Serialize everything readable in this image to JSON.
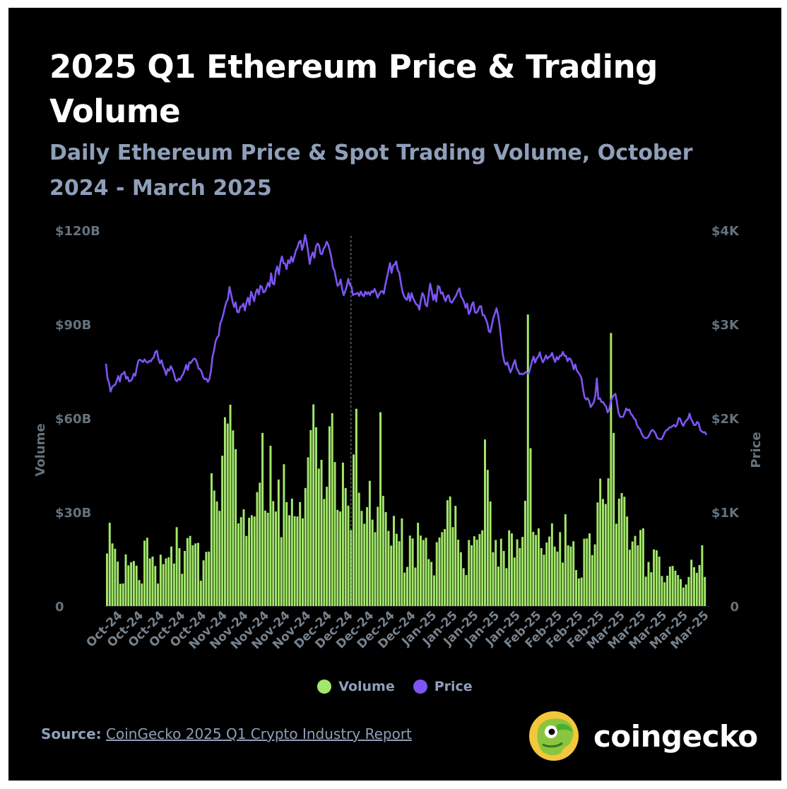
{
  "header": {
    "title": "2025 Q1 Ethereum Price & Trading Volume",
    "subtitle": "Daily Ethereum Price & Spot Trading Volume, October 2024 - March 2025"
  },
  "colors": {
    "background": "#000000",
    "volume": "#a3e86a",
    "price": "#7d55f4",
    "subtitle": "#8f9fb9",
    "axis_text": "#64727d"
  },
  "legend": {
    "volume_label": "Volume",
    "price_label": "Price"
  },
  "footer": {
    "source_label": "Source:",
    "source_text": "CoinGecko 2025 Q1 Crypto Industry Report",
    "brand": "coingecko"
  },
  "icons": {
    "logo": "coingecko-gecko-logo-icon"
  },
  "chart_data": {
    "type": "bar",
    "title": "2025 Q1 Ethereum Price & Trading Volume",
    "subtitle": "Daily Ethereum Price & Spot Trading Volume, October 2024 - March 2025",
    "y_left": {
      "label": "Volume",
      "range": [
        0,
        120
      ],
      "unit": "B USD",
      "ticks": [
        "0",
        "$30B",
        "$60B",
        "$90B",
        "$120B"
      ]
    },
    "y_right": {
      "label": "Price",
      "range": [
        0,
        4000
      ],
      "unit": "USD",
      "ticks": [
        "0",
        "$1K",
        "$2K",
        "$3K",
        "$4K"
      ]
    },
    "x_tick_labels": [
      "Oct-24",
      "Oct-24",
      "Oct-24",
      "Oct-24",
      "Oct-24",
      "Nov-24",
      "Nov-24",
      "Nov-24",
      "Nov-24",
      "Nov-24",
      "Dec-24",
      "Dec-24",
      "Dec-24",
      "Dec-24",
      "Dec-24",
      "Jan-25",
      "Jan-25",
      "Jan-25",
      "Jan-25",
      "Jan-25",
      "Feb-25",
      "Feb-25",
      "Feb-25",
      "Feb-25",
      "Mar-25",
      "Mar-25",
      "Mar-25",
      "Mar-25",
      "Mar-25"
    ],
    "vline_index": 91,
    "grid": false,
    "legend_position": "bottom",
    "series": [
      {
        "name": "Volume",
        "kind": "bar",
        "axis": "left",
        "values": [
          16.8,
          26.6,
          20,
          18.3,
          14.2,
          7.1,
          7.2,
          16.5,
          13,
          14,
          14.4,
          12.9,
          8.3,
          7.2,
          20.9,
          21.8,
          15.2,
          15.8,
          12.8,
          7.2,
          16.4,
          13.4,
          15.2,
          15.6,
          19,
          13.6,
          25.2,
          18.5,
          10.3,
          17.6,
          21.7,
          22.4,
          19.4,
          20,
          20.2,
          8.1,
          14.6,
          17.3,
          17.4,
          42.4,
          36.9,
          33.4,
          30.4,
          48,
          60.3,
          58.3,
          64.3,
          56.1,
          50.1,
          26.4,
          28.4,
          30.9,
          22.4,
          28.2,
          29,
          28.6,
          36.4,
          39.4,
          55.3,
          30.5,
          29.8,
          51.2,
          33.5,
          30.2,
          40.4,
          22,
          45.3,
          33.2,
          29,
          34.3,
          28.7,
          28.6,
          33.2,
          28,
          37.7,
          47.5,
          56.2,
          64.4,
          57.1,
          43.9,
          46.7,
          34.2,
          38.1,
          57.4,
          61.6,
          46,
          30.7,
          30.2,
          45.8,
          37.7,
          32.1,
          24.2,
          48.4,
          63,
          36.2,
          30.4,
          26.3,
          31.6,
          40,
          27.6,
          23.6,
          31.7,
          61.9,
          35.2,
          30,
          24,
          19.3,
          28.8,
          23.1,
          20.7,
          28,
          10.7,
          12.5,
          22.5,
          21.6,
          12.3,
          26.6,
          22.5,
          21.1,
          21.8,
          15,
          14.1,
          9.8,
          20.4,
          21.9,
          23.6,
          24.6,
          33.8,
          35,
          25.2,
          32,
          21.2,
          17.2,
          12.1,
          9.9,
          21.1,
          19.4,
          22.3,
          21.2,
          23,
          24.2,
          53.2,
          43.5,
          33.4,
          17.2,
          21.1,
          12.6,
          21.5,
          17.6,
          12.1,
          24.2,
          23.2,
          15.5,
          21.3,
          18.5,
          22.1,
          33.6,
          93.1,
          50.4,
          23.7,
          22.7,
          24.8,
          18.5,
          16.4,
          20.3,
          22.2,
          26.4,
          19,
          17.4,
          23.6,
          13.9,
          29.3,
          19.4,
          19,
          20.7,
          11.5,
          8.8,
          9.1,
          21.5,
          21.6,
          23.2,
          16.3,
          19.7,
          33.1,
          40.7,
          34.2,
          32.6,
          40.8,
          87.2,
          55.3,
          26.3,
          34.3,
          36.1,
          34.9,
          28.6,
          18,
          20.6,
          22.4,
          19.4,
          24.3,
          24.8,
          9.4,
          14.1,
          10.8,
          18.1,
          17.8,
          15.8,
          9.6,
          7.6,
          9.7,
          12.6,
          12.8,
          11.3,
          9.9,
          8.6,
          5.9,
          6.9,
          9.3,
          14.8,
          12.4,
          10.6,
          13.1,
          19.4,
          9.3
        ],
        "sample_count": 182
      },
      {
        "name": "Price",
        "kind": "line",
        "axis": "right",
        "values": [
          2580,
          2422,
          2376,
          2283,
          2331,
          2348,
          2356,
          2399,
          2449,
          2389,
          2466,
          2473,
          2493,
          2421,
          2439,
          2391,
          2398,
          2419,
          2473,
          2451,
          2541,
          2613,
          2623,
          2611,
          2598,
          2625,
          2600,
          2590,
          2610,
          2604,
          2632,
          2647,
          2704,
          2718,
          2631,
          2584,
          2617,
          2551,
          2516,
          2461,
          2521,
          2505,
          2554,
          2522,
          2474,
          2408,
          2392,
          2421,
          2407,
          2445,
          2467,
          2515,
          2568,
          2512,
          2594,
          2589,
          2615,
          2633,
          2629,
          2589,
          2527,
          2520,
          2491,
          2436,
          2414,
          2421,
          2387,
          2415,
          2500,
          2651,
          2721,
          2818,
          2858,
          2878,
          3005,
          3046,
          3102,
          3179,
          3236,
          3268,
          3396,
          3322,
          3244,
          3183,
          3233,
          3132,
          3126,
          3185,
          3190,
          3219,
          3147,
          3230,
          3283,
          3207,
          3346,
          3301,
          3245,
          3335,
          3372,
          3318,
          3409,
          3397,
          3339,
          3348,
          3393,
          3441,
          3401,
          3542,
          3435,
          3424,
          3563,
          3615,
          3530,
          3657,
          3721,
          3651,
          3646,
          3587,
          3682,
          3649,
          3719,
          3663,
          3719,
          3783,
          3815,
          3873,
          3889,
          3791,
          3844,
          3951,
          3874,
          3765,
          3641,
          3723,
          3764,
          3707,
          3823,
          3859,
          3840,
          3751,
          3746,
          3806,
          3828,
          3878,
          3846,
          3785,
          3713,
          3607,
          3574,
          3488,
          3409,
          3424,
          3476,
          3375,
          3309,
          3354,
          3407,
          3483,
          3418,
          3403,
          3310,
          3320,
          3323,
          3334,
          3301,
          3348,
          3313,
          3298,
          3347,
          3319,
          3342,
          3311,
          3352,
          3339,
          3376,
          3336,
          3282,
          3319,
          3347,
          3352,
          3326,
          3421,
          3495,
          3572,
          3652,
          3547,
          3626,
          3634,
          3669,
          3577,
          3548,
          3445,
          3352,
          3301,
          3274,
          3259,
          3330,
          3245,
          3331,
          3276,
          3244,
          3210,
          3203,
          3155,
          3258,
          3332,
          3302,
          3210,
          3190,
          3309,
          3432,
          3356,
          3258,
          3317,
          3242,
          3408,
          3396,
          3327,
          3339,
          3284,
          3244,
          3298,
          3307,
          3244,
          3229,
          3257,
          3283,
          3312,
          3356,
          3382,
          3295,
          3271,
          3233,
          3175,
          3219,
          3108,
          3136,
          3210,
          3234,
          3128,
          3120,
          3146,
          3189,
          3192,
          3097,
          3095,
          3056,
          3013,
          2925,
          2915,
          2993,
          3073,
          3116,
          3170,
          3099,
          2991,
          2843,
          2684,
          2602,
          2568,
          2594,
          2539,
          2488,
          2526,
          2581,
          2619,
          2534,
          2504,
          2468,
          2475,
          2466,
          2478,
          2492,
          2479,
          2475,
          2542,
          2605,
          2655,
          2592,
          2636,
          2653,
          2701,
          2638,
          2594,
          2625,
          2668,
          2632,
          2654,
          2661,
          2696,
          2637,
          2598,
          2651,
          2624,
          2664,
          2664,
          2705,
          2662,
          2663,
          2607,
          2638,
          2627,
          2588,
          2519,
          2572,
          2508,
          2485,
          2461,
          2429,
          2314,
          2226,
          2198,
          2213,
          2182,
          2118,
          2142,
          2169,
          2238,
          2423,
          2204,
          2212,
          2170,
          2173,
          2143,
          2123,
          2061,
          2093,
          2177,
          2218,
          2245,
          2258,
          2167,
          2060,
          2016,
          2012,
          2015,
          2054,
          2103,
          2084,
          2092,
          2045,
          2031,
          1998,
          1985,
          1926,
          1897,
          1880,
          1834,
          1807,
          1791,
          1787,
          1795,
          1823,
          1861,
          1875,
          1861,
          1836,
          1792,
          1780,
          1776,
          1778,
          1811,
          1849,
          1872,
          1879,
          1903,
          1902,
          1917,
          1928,
          1909,
          1934,
          2001,
          1993,
          1945,
          1917,
          1955,
          1978,
          1991,
          2048,
          1991,
          1963,
          1926,
          1927,
          1961,
          1944,
          1874,
          1858,
          1848,
          1851,
          1821
        ],
        "sample_count": 182
      }
    ]
  }
}
